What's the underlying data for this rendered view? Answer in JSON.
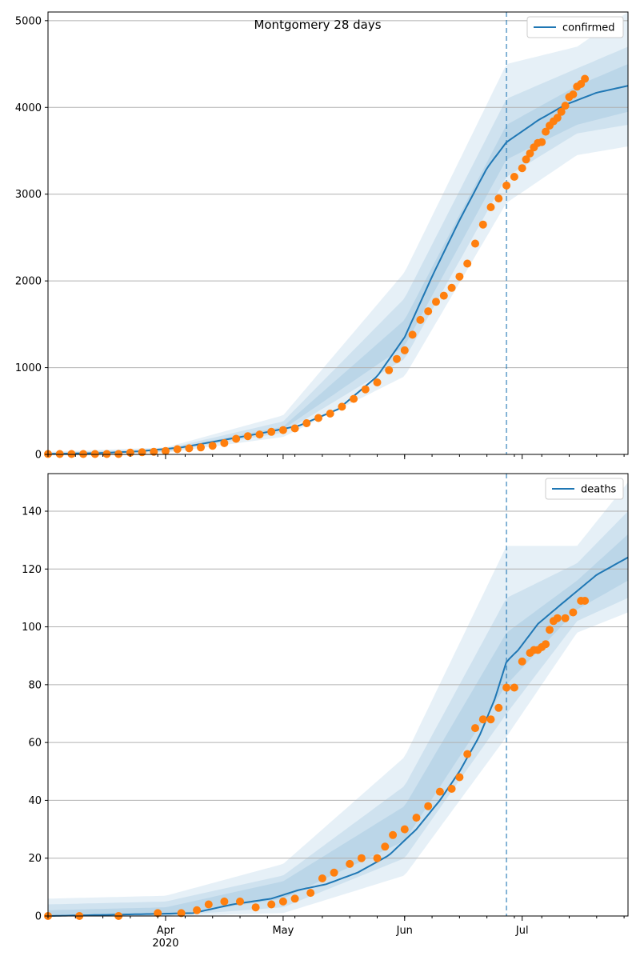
{
  "chart_data": [
    {
      "type": "line",
      "title": "Montgomery 28 days",
      "ylim": [
        0,
        5100
      ],
      "y_ticks": [
        0,
        1000,
        2000,
        3000,
        4000,
        5000
      ],
      "grid": "y",
      "legend": {
        "placement": "top-right",
        "entries": [
          "confirmed"
        ]
      },
      "x_range": [
        "2020-03-02",
        "2020-07-28"
      ],
      "forecast_start": "2020-06-27",
      "colors": {
        "model": "#1f77b4",
        "observed": "#ff7f0e",
        "band": "#1f77b4",
        "forecast_line": "#1f77b4"
      },
      "series": [
        {
          "name": "confirmed",
          "kind": "model",
          "points": [
            [
              "2020-03-02",
              5
            ],
            [
              "2020-03-15",
              15
            ],
            [
              "2020-03-25",
              35
            ],
            [
              "2020-04-05",
              80
            ],
            [
              "2020-04-15",
              160
            ],
            [
              "2020-04-25",
              240
            ],
            [
              "2020-05-05",
              330
            ],
            [
              "2020-05-15",
              520
            ],
            [
              "2020-05-25",
              900
            ],
            [
              "2020-06-01",
              1350
            ],
            [
              "2020-06-08",
              2050
            ],
            [
              "2020-06-15",
              2700
            ],
            [
              "2020-06-22",
              3300
            ],
            [
              "2020-06-27",
              3600
            ],
            [
              "2020-07-05",
              3850
            ],
            [
              "2020-07-12",
              4030
            ],
            [
              "2020-07-20",
              4170
            ],
            [
              "2020-07-28",
              4250
            ]
          ]
        },
        {
          "kind": "observed",
          "points": [
            [
              "2020-03-02",
              5
            ],
            [
              "2020-03-05",
              5
            ],
            [
              "2020-03-08",
              5
            ],
            [
              "2020-03-11",
              5
            ],
            [
              "2020-03-14",
              5
            ],
            [
              "2020-03-17",
              5
            ],
            [
              "2020-03-20",
              5
            ],
            [
              "2020-03-23",
              20
            ],
            [
              "2020-03-26",
              25
            ],
            [
              "2020-03-29",
              30
            ],
            [
              "2020-04-01",
              40
            ],
            [
              "2020-04-04",
              60
            ],
            [
              "2020-04-07",
              70
            ],
            [
              "2020-04-10",
              80
            ],
            [
              "2020-04-13",
              100
            ],
            [
              "2020-04-16",
              130
            ],
            [
              "2020-04-19",
              180
            ],
            [
              "2020-04-22",
              210
            ],
            [
              "2020-04-25",
              230
            ],
            [
              "2020-04-28",
              260
            ],
            [
              "2020-05-01",
              280
            ],
            [
              "2020-05-04",
              300
            ],
            [
              "2020-05-07",
              360
            ],
            [
              "2020-05-10",
              420
            ],
            [
              "2020-05-13",
              470
            ],
            [
              "2020-05-16",
              550
            ],
            [
              "2020-05-19",
              640
            ],
            [
              "2020-05-22",
              750
            ],
            [
              "2020-05-25",
              830
            ],
            [
              "2020-05-28",
              970
            ],
            [
              "2020-05-30",
              1100
            ],
            [
              "2020-06-01",
              1200
            ],
            [
              "2020-06-03",
              1380
            ],
            [
              "2020-06-05",
              1550
            ],
            [
              "2020-06-07",
              1650
            ],
            [
              "2020-06-09",
              1760
            ],
            [
              "2020-06-11",
              1830
            ],
            [
              "2020-06-13",
              1920
            ],
            [
              "2020-06-15",
              2050
            ],
            [
              "2020-06-17",
              2200
            ],
            [
              "2020-06-19",
              2430
            ],
            [
              "2020-06-21",
              2650
            ],
            [
              "2020-06-23",
              2850
            ],
            [
              "2020-06-25",
              2950
            ],
            [
              "2020-06-27",
              3100
            ],
            [
              "2020-06-29",
              3200
            ],
            [
              "2020-07-01",
              3300
            ],
            [
              "2020-07-02",
              3400
            ],
            [
              "2020-07-03",
              3470
            ],
            [
              "2020-07-04",
              3540
            ],
            [
              "2020-07-05",
              3590
            ],
            [
              "2020-07-06",
              3600
            ],
            [
              "2020-07-07",
              3720
            ],
            [
              "2020-07-08",
              3790
            ],
            [
              "2020-07-09",
              3840
            ],
            [
              "2020-07-10",
              3880
            ],
            [
              "2020-07-11",
              3950
            ],
            [
              "2020-07-12",
              4020
            ],
            [
              "2020-07-13",
              4120
            ],
            [
              "2020-07-14",
              4150
            ],
            [
              "2020-07-15",
              4240
            ],
            [
              "2020-07-16",
              4270
            ],
            [
              "2020-07-17",
              4330
            ]
          ]
        }
      ],
      "bands": [
        {
          "upper": [
            [
              "2020-03-02",
              30
            ],
            [
              "2020-04-01",
              80
            ],
            [
              "2020-05-01",
              450
            ],
            [
              "2020-06-01",
              2100
            ],
            [
              "2020-06-27",
              4500
            ],
            [
              "2020-07-15",
              4700
            ],
            [
              "2020-07-28",
              5100
            ]
          ],
          "lower": [
            [
              "2020-03-02",
              0
            ],
            [
              "2020-04-01",
              20
            ],
            [
              "2020-05-01",
              200
            ],
            [
              "2020-06-01",
              900
            ],
            [
              "2020-06-27",
              2900
            ],
            [
              "2020-07-15",
              3450
            ],
            [
              "2020-07-28",
              3550
            ]
          ]
        },
        {
          "upper": [
            [
              "2020-03-02",
              20
            ],
            [
              "2020-04-01",
              65
            ],
            [
              "2020-05-01",
              380
            ],
            [
              "2020-06-01",
              1800
            ],
            [
              "2020-06-27",
              4100
            ],
            [
              "2020-07-15",
              4450
            ],
            [
              "2020-07-28",
              4700
            ]
          ],
          "lower": [
            [
              "2020-03-02",
              0
            ],
            [
              "2020-04-01",
              30
            ],
            [
              "2020-05-01",
              250
            ],
            [
              "2020-06-01",
              1100
            ],
            [
              "2020-06-27",
              3200
            ],
            [
              "2020-07-15",
              3700
            ],
            [
              "2020-07-28",
              3800
            ]
          ]
        },
        {
          "upper": [
            [
              "2020-03-02",
              12
            ],
            [
              "2020-04-01",
              55
            ],
            [
              "2020-05-01",
              320
            ],
            [
              "2020-06-01",
              1550
            ],
            [
              "2020-06-27",
              3800
            ],
            [
              "2020-07-15",
              4250
            ],
            [
              "2020-07-28",
              4500
            ]
          ],
          "lower": [
            [
              "2020-03-02",
              2
            ],
            [
              "2020-04-01",
              38
            ],
            [
              "2020-05-01",
              290
            ],
            [
              "2020-06-01",
              1250
            ],
            [
              "2020-06-27",
              3400
            ],
            [
              "2020-07-15",
              3800
            ],
            [
              "2020-07-28",
              3950
            ]
          ]
        }
      ]
    },
    {
      "type": "line",
      "title": "",
      "ylim": [
        0,
        153
      ],
      "y_ticks": [
        0,
        20,
        40,
        60,
        80,
        100,
        120,
        140
      ],
      "grid": "y",
      "legend": {
        "placement": "top-right",
        "entries": [
          "deaths"
        ]
      },
      "x_range": [
        "2020-03-02",
        "2020-07-28"
      ],
      "forecast_start": "2020-06-27",
      "x_tick_labels": [
        {
          "date": "2020-04-01",
          "label": "Apr",
          "sublabel": "2020"
        },
        {
          "date": "2020-05-01",
          "label": "May"
        },
        {
          "date": "2020-06-01",
          "label": "Jun"
        },
        {
          "date": "2020-07-01",
          "label": "Jul"
        }
      ],
      "colors": {
        "model": "#1f77b4",
        "observed": "#ff7f0e",
        "band": "#1f77b4",
        "forecast_line": "#1f77b4"
      },
      "series": [
        {
          "name": "deaths",
          "kind": "model",
          "points": [
            [
              "2020-03-02",
              0
            ],
            [
              "2020-04-08",
              1
            ],
            [
              "2020-04-18",
              4
            ],
            [
              "2020-04-28",
              6
            ],
            [
              "2020-05-05",
              9
            ],
            [
              "2020-05-12",
              11
            ],
            [
              "2020-05-20",
              15
            ],
            [
              "2020-05-28",
              21
            ],
            [
              "2020-06-04",
              30
            ],
            [
              "2020-06-10",
              40
            ],
            [
              "2020-06-15",
              50
            ],
            [
              "2020-06-20",
              62
            ],
            [
              "2020-06-24",
              75
            ],
            [
              "2020-06-27",
              88
            ],
            [
              "2020-06-30",
              92
            ],
            [
              "2020-07-05",
              101
            ],
            [
              "2020-07-12",
              109
            ],
            [
              "2020-07-20",
              118
            ],
            [
              "2020-07-28",
              124
            ]
          ]
        },
        {
          "kind": "observed",
          "points": [
            [
              "2020-03-02",
              0
            ],
            [
              "2020-03-10",
              0
            ],
            [
              "2020-03-20",
              0
            ],
            [
              "2020-03-30",
              1
            ],
            [
              "2020-04-05",
              1
            ],
            [
              "2020-04-09",
              2
            ],
            [
              "2020-04-12",
              4
            ],
            [
              "2020-04-16",
              5
            ],
            [
              "2020-04-20",
              5
            ],
            [
              "2020-04-24",
              3
            ],
            [
              "2020-04-28",
              4
            ],
            [
              "2020-05-01",
              5
            ],
            [
              "2020-05-04",
              6
            ],
            [
              "2020-05-08",
              8
            ],
            [
              "2020-05-11",
              13
            ],
            [
              "2020-05-14",
              15
            ],
            [
              "2020-05-18",
              18
            ],
            [
              "2020-05-21",
              20
            ],
            [
              "2020-05-25",
              20
            ],
            [
              "2020-05-27",
              24
            ],
            [
              "2020-05-29",
              28
            ],
            [
              "2020-06-01",
              30
            ],
            [
              "2020-06-04",
              34
            ],
            [
              "2020-06-07",
              38
            ],
            [
              "2020-06-10",
              43
            ],
            [
              "2020-06-13",
              44
            ],
            [
              "2020-06-15",
              48
            ],
            [
              "2020-06-17",
              56
            ],
            [
              "2020-06-19",
              65
            ],
            [
              "2020-06-21",
              68
            ],
            [
              "2020-06-23",
              68
            ],
            [
              "2020-06-25",
              72
            ],
            [
              "2020-06-27",
              79
            ],
            [
              "2020-06-29",
              79
            ],
            [
              "2020-07-01",
              88
            ],
            [
              "2020-07-03",
              91
            ],
            [
              "2020-07-04",
              92
            ],
            [
              "2020-07-05",
              92
            ],
            [
              "2020-07-06",
              93
            ],
            [
              "2020-07-07",
              94
            ],
            [
              "2020-07-08",
              99
            ],
            [
              "2020-07-09",
              102
            ],
            [
              "2020-07-10",
              103
            ],
            [
              "2020-07-12",
              103
            ],
            [
              "2020-07-14",
              105
            ],
            [
              "2020-07-16",
              109
            ],
            [
              "2020-07-17",
              109
            ]
          ]
        }
      ],
      "bands": [
        {
          "upper": [
            [
              "2020-03-02",
              6
            ],
            [
              "2020-04-01",
              7
            ],
            [
              "2020-05-01",
              18
            ],
            [
              "2020-06-01",
              55
            ],
            [
              "2020-06-27",
              128
            ],
            [
              "2020-07-15",
              128
            ],
            [
              "2020-07-28",
              150
            ]
          ],
          "lower": [
            [
              "2020-03-02",
              0
            ],
            [
              "2020-04-01",
              0
            ],
            [
              "2020-05-01",
              1
            ],
            [
              "2020-06-01",
              14
            ],
            [
              "2020-06-27",
              62
            ],
            [
              "2020-07-15",
              98
            ],
            [
              "2020-07-28",
              105
            ]
          ]
        },
        {
          "upper": [
            [
              "2020-03-02",
              4
            ],
            [
              "2020-04-01",
              5
            ],
            [
              "2020-05-01",
              14
            ],
            [
              "2020-06-01",
              45
            ],
            [
              "2020-06-27",
              110
            ],
            [
              "2020-07-15",
              122
            ],
            [
              "2020-07-28",
              140
            ]
          ],
          "lower": [
            [
              "2020-03-02",
              0
            ],
            [
              "2020-04-01",
              0
            ],
            [
              "2020-05-01",
              3
            ],
            [
              "2020-06-01",
              20
            ],
            [
              "2020-06-27",
              70
            ],
            [
              "2020-07-15",
              102
            ],
            [
              "2020-07-28",
              110
            ]
          ]
        },
        {
          "upper": [
            [
              "2020-03-02",
              2
            ],
            [
              "2020-04-01",
              3
            ],
            [
              "2020-05-01",
              12
            ],
            [
              "2020-06-01",
              38
            ],
            [
              "2020-06-27",
              98
            ],
            [
              "2020-07-15",
              116
            ],
            [
              "2020-07-28",
              132
            ]
          ],
          "lower": [
            [
              "2020-03-02",
              0
            ],
            [
              "2020-04-01",
              0
            ],
            [
              "2020-05-01",
              6
            ],
            [
              "2020-06-01",
              26
            ],
            [
              "2020-06-27",
              80
            ],
            [
              "2020-07-15",
              106
            ],
            [
              "2020-07-28",
              116
            ]
          ]
        }
      ]
    }
  ]
}
